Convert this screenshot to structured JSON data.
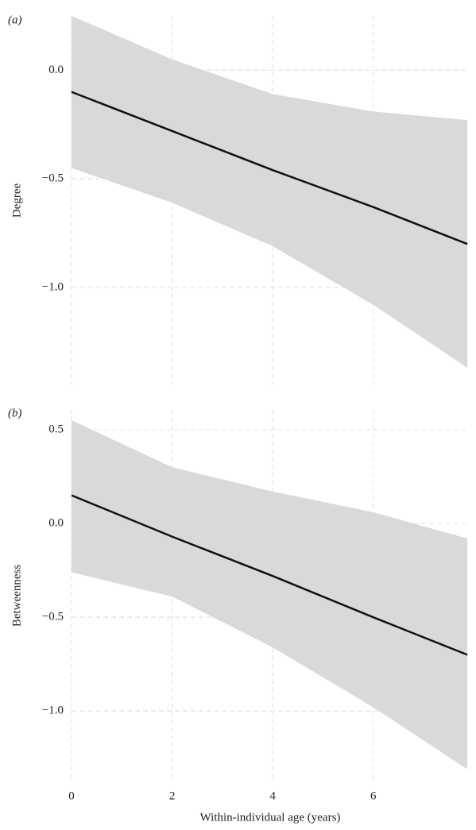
{
  "chart_data": [
    {
      "type": "line",
      "panel_label": "(a)",
      "y_label": "Degree",
      "x": [
        0,
        2,
        4,
        6,
        7.87
      ],
      "line": {
        "color": "#111111",
        "values": [
          -0.1,
          -0.28,
          -0.46,
          -0.63,
          -0.8
        ]
      },
      "band": {
        "color": "#d9d9d9",
        "upper": [
          0.25,
          0.05,
          -0.11,
          -0.19,
          -0.23
        ],
        "lower": [
          -0.45,
          -0.61,
          -0.81,
          -1.08,
          -1.37
        ]
      },
      "xlim": [
        0,
        7.9
      ],
      "ylim": [
        -1.45,
        0.25
      ],
      "yticks": [
        {
          "value": 0,
          "label": "0.0"
        },
        {
          "value": -0.5,
          "label": "−0.5"
        },
        {
          "value": -1,
          "label": "−1.0"
        }
      ],
      "grid": true
    },
    {
      "type": "line",
      "panel_label": "(b)",
      "y_label": "Betweenness",
      "x_label": "Within-individual age (years)",
      "x": [
        0,
        2,
        4,
        6,
        7.87
      ],
      "line": {
        "color": "#111111",
        "values": [
          0.15,
          -0.07,
          -0.28,
          -0.5,
          -0.7
        ]
      },
      "band": {
        "color": "#d9d9d9",
        "upper": [
          0.55,
          0.3,
          0.17,
          0.06,
          -0.08
        ],
        "lower": [
          -0.26,
          -0.39,
          -0.66,
          -0.98,
          -1.31
        ]
      },
      "xlim": [
        0,
        7.9
      ],
      "ylim": [
        -1.38,
        0.61
      ],
      "xticks": [
        0,
        2,
        4,
        6
      ],
      "yticks": [
        {
          "value": 0.5,
          "label": "0.5"
        },
        {
          "value": 0,
          "label": "0.0"
        },
        {
          "value": -0.5,
          "label": "−0.5"
        },
        {
          "value": -1,
          "label": "−1.0"
        }
      ],
      "grid": true
    }
  ]
}
